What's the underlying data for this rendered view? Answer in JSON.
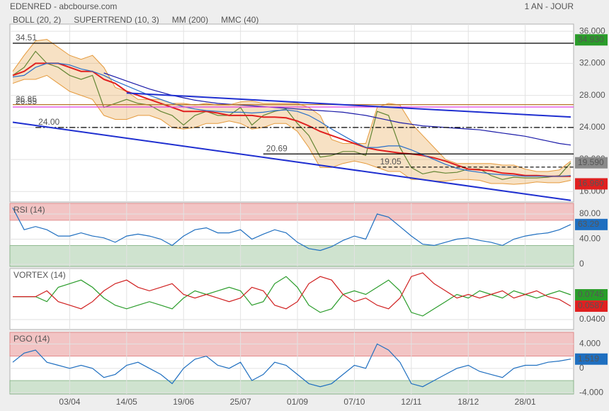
{
  "header": {
    "source": "EDENRED - abcbourse.com",
    "period": "1 AN - JOUR"
  },
  "chart_data": [
    {
      "type": "line",
      "categories": [
        null,
        null,
        null,
        null,
        null,
        "03/04",
        null,
        null,
        null,
        null,
        "14/05",
        null,
        null,
        null,
        null,
        "19/06",
        null,
        null,
        null,
        null,
        "25/07",
        null,
        null,
        null,
        null,
        "01/09",
        null,
        null,
        null,
        null,
        "07/10",
        null,
        null,
        null,
        null,
        "12/11",
        null,
        null,
        null,
        null,
        "18/12",
        null,
        null,
        null,
        null,
        "28/01",
        null,
        null,
        null,
        null
      ],
      "ylim": [
        14.7,
        36.9
      ],
      "yticks": [
        {
          "value": 16,
          "label": "16.000"
        },
        {
          "value": 20,
          "label": "20.000"
        },
        {
          "value": 24,
          "label": "24.000"
        },
        {
          "value": 28,
          "label": "28.000"
        },
        {
          "value": 32,
          "label": "32.000"
        },
        {
          "value": 36,
          "label": "36.000"
        }
      ],
      "grid": true,
      "series": [
        {
          "color": "#2e7d32",
          "values": [
            30.5,
            31.5,
            33.5,
            32,
            31.5,
            30.5,
            30,
            30.5,
            26.5,
            27,
            27.5,
            27,
            26.8,
            26,
            25.5,
            24.3,
            25.5,
            26,
            25.5,
            25.5,
            26.5,
            24.3,
            25.5,
            26,
            26.3,
            24.5,
            23,
            20.3,
            20.5,
            21,
            21,
            20.5,
            26,
            25.5,
            21.5,
            19,
            18.2,
            18.5,
            18.3,
            18.4,
            18.8,
            18.8,
            18,
            17.5,
            17.8,
            17.7,
            17.7,
            17.8,
            18,
            19.59
          ]
        },
        {
          "name": "BOLL (20, 2)",
          "color": "#e59a3c",
          "upper": [
            31,
            33,
            34.8,
            35,
            34,
            33,
            32.5,
            33,
            31.5,
            29,
            28.5,
            27.5,
            27.5,
            27.5,
            27,
            27,
            26.8,
            27,
            26.8,
            26.8,
            27.2,
            27.3,
            27,
            27,
            27,
            27,
            26.5,
            25.5,
            22.5,
            22,
            22,
            22,
            26.5,
            27,
            26.8,
            24.5,
            23,
            21.5,
            20,
            19.5,
            19.5,
            19.5,
            19.5,
            19.3,
            19.3,
            18.8,
            18.5,
            18.5,
            18.7,
            19.8
          ],
          "lower": [
            29.5,
            30,
            30,
            30.5,
            29.5,
            28.5,
            28,
            27.5,
            25.5,
            25,
            25,
            25.5,
            25.5,
            25,
            24,
            23.8,
            24,
            24.5,
            24.5,
            24.8,
            24.5,
            23.8,
            24,
            24.5,
            24.5,
            23.5,
            21.5,
            19,
            19,
            19.5,
            19.8,
            19.5,
            19,
            18.5,
            18.5,
            17.5,
            17.5,
            17.3,
            17.3,
            17.5,
            17.5,
            17.4,
            17,
            17,
            16.9,
            17,
            17.2,
            17.1,
            17.1,
            17.4
          ]
        },
        {
          "name": "SUPERTREND (10, 3)",
          "color": "#e02020",
          "values": [
            30.5,
            31,
            32,
            32,
            32,
            31.5,
            31,
            31,
            30,
            29.5,
            28.5,
            28,
            27.5,
            27,
            26.5,
            26,
            26,
            26,
            25.8,
            25.5,
            25.5,
            25.5,
            25.3,
            25.3,
            25.2,
            24.8,
            24.2,
            23.5,
            23,
            22.5,
            22,
            21.5,
            21.2,
            21,
            20.8,
            20.7,
            20.5,
            20.2,
            19.8,
            19.3,
            18.8,
            18.7,
            18.6,
            18.3,
            18.2,
            18,
            18,
            17.9,
            17.9,
            17.9
          ]
        },
        {
          "name": "MM (200)",
          "color": "#1a1aa8",
          "values": [
            null,
            null,
            null,
            null,
            null,
            null,
            null,
            null,
            30.8,
            30.3,
            29.8,
            29.3,
            28.8,
            28.4,
            28.0,
            27.7,
            27.4,
            27.2,
            27.0,
            26.9,
            26.8,
            26.7,
            26.6,
            26.5,
            26.4,
            26.3,
            26.2,
            26.1,
            26.0,
            25.9,
            25.7,
            25.5,
            25.2,
            24.9,
            24.6,
            24.4,
            24.2,
            24.1,
            24.0,
            23.9,
            23.8,
            23.7,
            23.5,
            23.3,
            23.1,
            22.9,
            22.6,
            22.3,
            22.0,
            21.8
          ]
        },
        {
          "name": "MMC (40)",
          "color": "#2a6fc9",
          "values": [
            30.3,
            30.5,
            31.5,
            32,
            32,
            31.8,
            31.3,
            31,
            30.5,
            29.8,
            29.2,
            28.6,
            28,
            27.5,
            27,
            26.6,
            26.3,
            26.1,
            26,
            25.9,
            25.9,
            25.8,
            25.9,
            26.1,
            26.2,
            26,
            25.5,
            24.7,
            23.8,
            23,
            22.2,
            21.5,
            21.5,
            21.7,
            21.7,
            21.2,
            20.6,
            20,
            19.4,
            18.9,
            18.6,
            18.4,
            18.2,
            18.1,
            18,
            17.9,
            17.9,
            17.9,
            17.9,
            18.0
          ]
        }
      ],
      "levels": [
        {
          "value": 34.51,
          "label": "34.51",
          "color": "#000000",
          "style": "solid",
          "start": 0
        },
        {
          "value": 26.85,
          "label": "26.85",
          "color": "#b8742a",
          "style": "solid",
          "start": 0
        },
        {
          "value": 26.55,
          "label": "26.55",
          "color": "#e040e0",
          "style": "solid",
          "start": 0
        },
        {
          "value": 24.0,
          "label": "24.00",
          "color": "#000000",
          "style": "dashdot",
          "start": 2
        },
        {
          "value": 20.69,
          "label": "20.69",
          "color": "#000000",
          "style": "solid",
          "start": 22
        },
        {
          "value": 19.05,
          "label": "19.05",
          "color": "#000000",
          "style": "dashed",
          "start": 32
        }
      ],
      "trendlines": [
        {
          "color": "#1f2fd0",
          "start": [
            10,
            28.3
          ],
          "end": [
            49,
            25.3
          ]
        },
        {
          "color": "#1f2fd0",
          "start": [
            0,
            24.65
          ],
          "end": [
            49,
            14.9
          ]
        }
      ],
      "markers": [
        {
          "value": 34.93,
          "label": "34.930",
          "color": "#2a9c2a"
        },
        {
          "value": 19.59,
          "label": "19.590",
          "color": "#8a8a8a"
        },
        {
          "value": 16.96,
          "label": "16.960",
          "color": "#e02020"
        }
      ]
    },
    {
      "type": "line",
      "title": "RSI (14)",
      "ylim": [
        -3.4,
        96.9
      ],
      "yticks": [
        0,
        {
          "value": 40,
          "label": "40.00"
        },
        {
          "value": 80,
          "label": "80.00"
        }
      ],
      "upper_band": 70,
      "lower_band": 30,
      "series": [
        {
          "color": "#1f6fc0",
          "values": [
            90,
            55,
            60,
            55,
            45,
            45,
            50,
            45,
            42,
            35,
            45,
            48,
            45,
            40,
            30,
            45,
            55,
            58,
            50,
            50,
            55,
            40,
            48,
            55,
            50,
            35,
            25,
            22,
            28,
            38,
            45,
            40,
            80,
            75,
            60,
            45,
            32,
            30,
            35,
            40,
            42,
            38,
            35,
            30,
            40,
            45,
            48,
            50,
            55,
            63.29
          ]
        }
      ],
      "markers": [
        {
          "value": 63.29,
          "label": "63.29",
          "color": "#1f6fc0"
        }
      ]
    },
    {
      "type": "line",
      "title": "VORTEX (14)",
      "ylim": [
        0.0262,
        0.111
      ],
      "yticks": [
        {
          "value": 0.04,
          "label": "0.0400"
        }
      ],
      "series": [
        {
          "color": "#2a9c2a",
          "values": [
            0.072,
            0.072,
            0.072,
            0.065,
            0.085,
            0.09,
            0.095,
            0.085,
            0.07,
            0.06,
            0.055,
            0.06,
            0.065,
            0.06,
            0.055,
            0.07,
            0.08,
            0.075,
            0.08,
            0.085,
            0.08,
            0.06,
            0.065,
            0.09,
            0.1,
            0.085,
            0.06,
            0.05,
            0.055,
            0.075,
            0.08,
            0.075,
            0.085,
            0.095,
            0.08,
            0.05,
            0.045,
            0.055,
            0.065,
            0.075,
            0.07,
            0.08,
            0.075,
            0.07,
            0.08,
            0.075,
            0.07,
            0.075,
            0.08,
            0.0745
          ]
        },
        {
          "color": "#d02020",
          "values": [
            0.072,
            0.072,
            0.072,
            0.08,
            0.065,
            0.06,
            0.055,
            0.065,
            0.08,
            0.09,
            0.095,
            0.085,
            0.08,
            0.085,
            0.09,
            0.075,
            0.07,
            0.075,
            0.07,
            0.065,
            0.07,
            0.085,
            0.08,
            0.06,
            0.055,
            0.065,
            0.09,
            0.1,
            0.095,
            0.075,
            0.065,
            0.07,
            0.06,
            0.055,
            0.07,
            0.1,
            0.105,
            0.09,
            0.08,
            0.07,
            0.075,
            0.07,
            0.075,
            0.08,
            0.07,
            0.075,
            0.08,
            0.072,
            0.068,
            0.0587
          ]
        }
      ],
      "markers": [
        {
          "value": 0.0745,
          "label": "0.0745",
          "color": "#2a9c2a"
        },
        {
          "value": 0.0587,
          "label": "0.0587",
          "color": "#e02020"
        }
      ]
    },
    {
      "type": "line",
      "title": "PGO (14)",
      "ylim": [
        -4.2,
        5.9
      ],
      "yticks": [
        {
          "value": -4,
          "label": "-4.000"
        },
        0,
        {
          "value": 4,
          "label": "4.000"
        }
      ],
      "upper_band": 2,
      "lower_band": -2,
      "series": [
        {
          "color": "#1f6fc0",
          "values": [
            1,
            2.5,
            3,
            1,
            0.5,
            0,
            0.5,
            0,
            -1.5,
            -1,
            0.5,
            1,
            0,
            -1,
            -2.5,
            0,
            1.5,
            2,
            0.5,
            0,
            1,
            -2,
            -1,
            1,
            0.5,
            -1,
            -2.5,
            -3,
            -2.5,
            -1,
            0.5,
            0,
            4,
            3,
            1,
            -2.5,
            -3,
            -2,
            -1,
            0,
            0.5,
            -0.5,
            -1,
            -1.5,
            0,
            0.5,
            0.5,
            1,
            1.2,
            1.519
          ]
        }
      ],
      "markers": [
        {
          "value": 1.519,
          "label": "1.519",
          "color": "#1f6fc0"
        }
      ]
    }
  ]
}
